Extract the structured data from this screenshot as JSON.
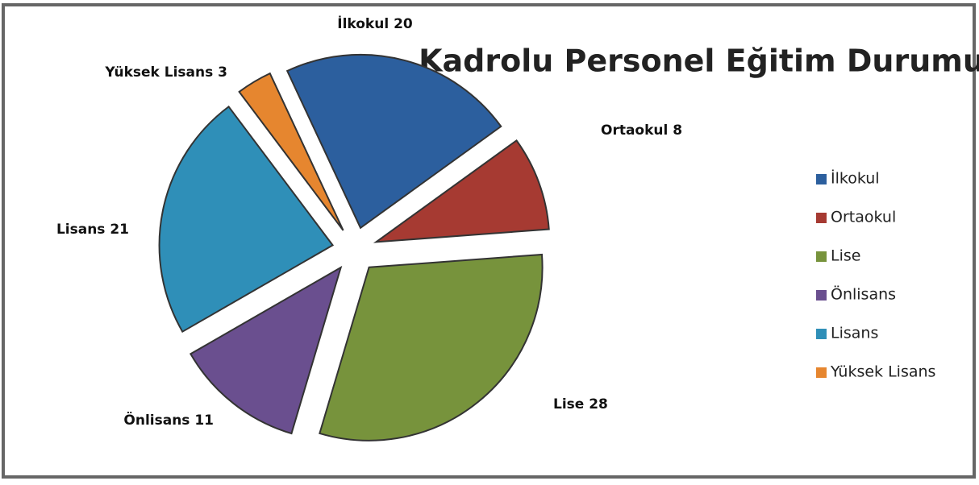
{
  "chart_data": {
    "type": "pie",
    "title": "Kadrolu Personel Eğitim Durumu",
    "categories": [
      "İlkokul",
      "Ortaokul",
      "Lise",
      "Önlisans",
      "Lisans",
      "Yüksek  Lisans"
    ],
    "values": [
      20,
      8,
      28,
      11,
      21,
      3
    ],
    "value_labels": [
      "İlkokul  20",
      "Ortaokul 8",
      "Lise 28",
      "Önlisans 11",
      "Lisans  21",
      "Yüksek Lisans 3"
    ],
    "colors": [
      "#2c5f9e",
      "#a63a32",
      "#77933c",
      "#6a4f8f",
      "#2f8fb8",
      "#e6862f"
    ],
    "legend": "right"
  }
}
